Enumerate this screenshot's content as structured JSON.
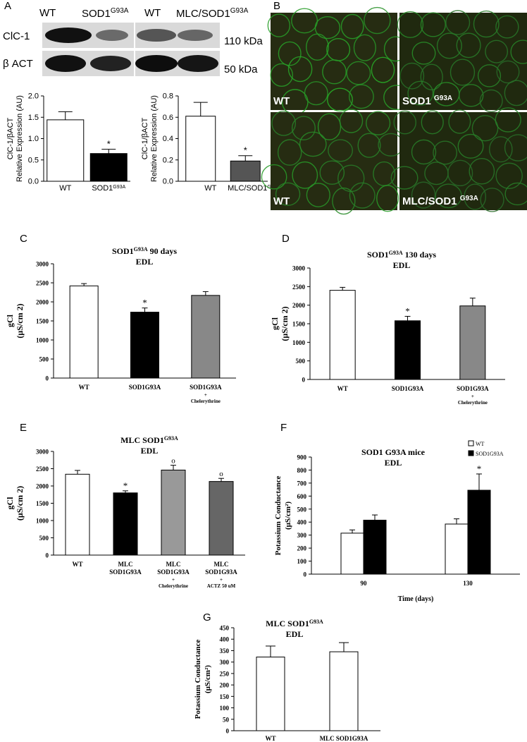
{
  "panel_letters": {
    "a": "A",
    "b": "B",
    "c": "C",
    "d": "D",
    "e": "E",
    "f": "F",
    "g": "G"
  },
  "western_blot": {
    "lanes_left": [
      "WT",
      "SOD1"
    ],
    "lanes_left_sup": "G93A",
    "lanes_right": [
      "WT",
      "MLC/SOD1"
    ],
    "lanes_right_sup": "G93A",
    "rows": [
      {
        "protein": "ClC-1",
        "size": "110 kDa"
      },
      {
        "protein": "β ACT",
        "size": "50 kDa"
      }
    ]
  },
  "micrographs": [
    {
      "label": "WT",
      "sup": ""
    },
    {
      "label": "SOD1 ",
      "sup": "G93A"
    },
    {
      "label": "WT",
      "sup": ""
    },
    {
      "label": "MLC/SOD1 ",
      "sup": "G93A"
    }
  ],
  "chart_data": [
    {
      "id": "A-left",
      "type": "bar",
      "categories": [
        "WT",
        "SOD1"
      ],
      "category_sup": [
        "",
        "G93A"
      ],
      "values": [
        1.44,
        0.65
      ],
      "errors": [
        0.19,
        0.1
      ],
      "colors": [
        "#ffffff",
        "#000000"
      ],
      "significance": [
        "",
        "*"
      ],
      "ylabel_lines": [
        "ClC-1/βACT",
        "Relative Expression (AU)"
      ],
      "ylim": [
        0,
        2.0
      ],
      "yticks": [
        "0.0",
        "0.5",
        "1.0",
        "1.5",
        "2.0"
      ]
    },
    {
      "id": "A-right",
      "type": "bar",
      "categories": [
        "WT",
        "MLC/SOD1"
      ],
      "category_sup": [
        "",
        "G93A"
      ],
      "values": [
        0.61,
        0.19
      ],
      "errors": [
        0.13,
        0.05
      ],
      "colors": [
        "#ffffff",
        "#555555"
      ],
      "significance": [
        "",
        "*"
      ],
      "ylabel_lines": [
        "ClC-1/βACT",
        "Relative Expression (AU)"
      ],
      "ylim": [
        0,
        0.8
      ],
      "yticks": [
        "0.0",
        "0.2",
        "0.4",
        "0.6",
        "0.8"
      ]
    },
    {
      "id": "C",
      "type": "bar",
      "title_main": "SOD1",
      "title_sup": "G93A",
      "title_rest": " 90 days",
      "subtitle": "EDL",
      "categories": [
        "WT",
        "SOD1G93A",
        "SOD1G93A"
      ],
      "category_extra": [
        "",
        "",
        "+|Chelerythrine"
      ],
      "values": [
        2420,
        1730,
        2170
      ],
      "errors": [
        60,
        110,
        100
      ],
      "colors": [
        "#ffffff",
        "#000000",
        "#888888"
      ],
      "significance": [
        "",
        "*",
        ""
      ],
      "ylabel_lines": [
        "gCl",
        "(μS/cm 2)"
      ],
      "ylim": [
        0,
        3000
      ],
      "yticks": [
        "0",
        "500",
        "1000",
        "1500",
        "2000",
        "2500",
        "3000"
      ]
    },
    {
      "id": "D",
      "type": "bar",
      "title_main": "SOD1",
      "title_sup": "G93A",
      "title_rest": " 130 days",
      "subtitle": "EDL",
      "categories": [
        "WT",
        "SOD1G93A",
        "SOD1G93A"
      ],
      "category_extra": [
        "",
        "",
        "+|Chelerythrine"
      ],
      "values": [
        2400,
        1580,
        1980
      ],
      "errors": [
        80,
        120,
        210
      ],
      "colors": [
        "#ffffff",
        "#000000",
        "#888888"
      ],
      "significance": [
        "",
        "*",
        ""
      ],
      "ylabel_lines": [
        "gCl",
        "(μS/cm 2)"
      ],
      "ylim": [
        0,
        3000
      ],
      "yticks": [
        "0",
        "500",
        "1000",
        "1500",
        "2000",
        "2500",
        "3000"
      ]
    },
    {
      "id": "E",
      "type": "bar",
      "title_main": "MLC SOD1",
      "title_sup": "G93A",
      "title_rest": "",
      "subtitle": "EDL",
      "categories": [
        "WT",
        "MLC|SOD1G93A",
        "MLC|SOD1G93A",
        "MLC|SOD1G93A"
      ],
      "category_extra": [
        "",
        "",
        "+|Chelerythrine",
        "+|ACTZ  50 uM"
      ],
      "values": [
        2340,
        1800,
        2460,
        2130
      ],
      "errors": [
        110,
        60,
        140,
        90
      ],
      "colors": [
        "#ffffff",
        "#000000",
        "#999999",
        "#666666"
      ],
      "significance": [
        "",
        "*",
        "o",
        "o"
      ],
      "ylabel_lines": [
        "gCl",
        "(μS/cm 2)"
      ],
      "ylim": [
        0,
        3000
      ],
      "yticks": [
        "0",
        "500",
        "1000",
        "1500",
        "2000",
        "2500",
        "3000"
      ]
    },
    {
      "id": "F",
      "type": "bar",
      "title_main": "SOD1 G93A mice",
      "title_sup": "",
      "title_rest": "",
      "subtitle": "EDL",
      "categories": [
        "90",
        "130"
      ],
      "series": [
        {
          "name": "WT",
          "values": [
            315,
            385
          ],
          "errors": [
            25,
            40
          ],
          "color": "#ffffff"
        },
        {
          "name": "SOD1G93A",
          "values": [
            415,
            645
          ],
          "errors": [
            40,
            125
          ],
          "color": "#000000"
        }
      ],
      "significance": [
        [
          "",
          ""
        ],
        [
          "",
          "*"
        ]
      ],
      "xlabel": "Time (days)",
      "ylabel_lines": [
        "Potassium Conductance",
        "(μS/cm²)"
      ],
      "ylim": [
        0,
        900
      ],
      "yticks": [
        "0",
        "100",
        "200",
        "300",
        "400",
        "500",
        "600",
        "700",
        "800",
        "900"
      ],
      "legend_position": "top-right"
    },
    {
      "id": "G",
      "type": "bar",
      "title_main": "MLC SOD1",
      "title_sup": "G93A",
      "title_rest": "",
      "subtitle": "EDL",
      "categories": [
        "WT",
        "MLC SOD1G93A"
      ],
      "values": [
        322,
        345
      ],
      "errors": [
        48,
        40
      ],
      "colors": [
        "#ffffff",
        "#ffffff"
      ],
      "significance": [
        "",
        ""
      ],
      "ylabel_lines": [
        "Potassium Conductance",
        "(μS/cm²)"
      ],
      "ylim": [
        0,
        450
      ],
      "yticks": [
        "0",
        "50",
        "100",
        "150",
        "200",
        "250",
        "300",
        "350",
        "400",
        "450"
      ]
    }
  ]
}
